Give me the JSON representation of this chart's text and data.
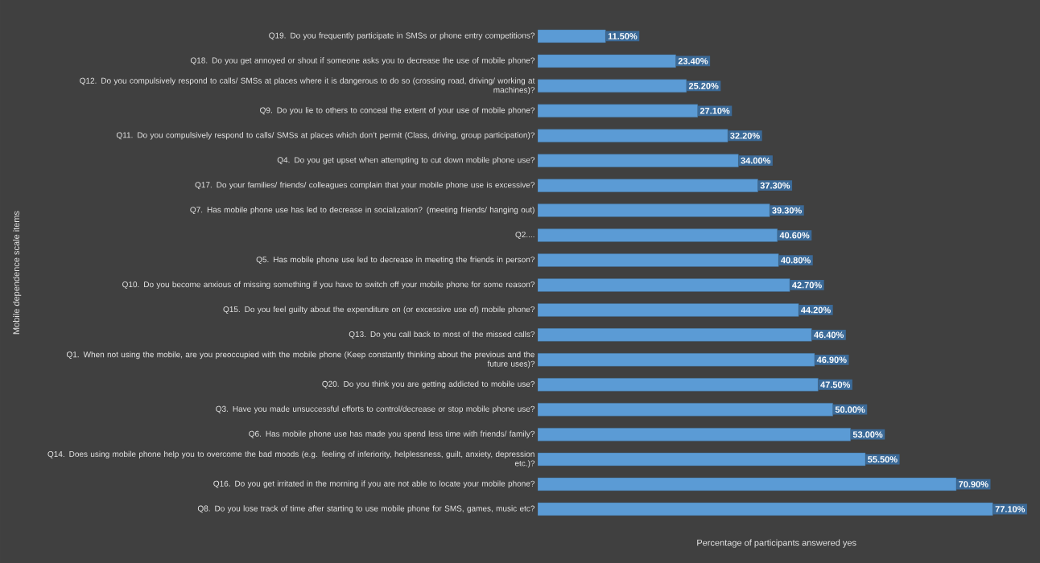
{
  "chart_data": {
    "type": "bar",
    "orientation": "horizontal",
    "xlabel": "Percentage of participants answered yes",
    "ylabel": "Mobile dependence scale items",
    "color": "#5b9bd5",
    "categories": [
      "Q19. Do you frequently participate in SMSs or phone entry competitions?",
      "Q18. Do you get annoyed or shout if someone asks you to decrease the use of mobile phone?",
      "Q12. Do you compulsively respond to calls/ SMSs at places where it is dangerous to do so (crossing road, driving/ working at machines)?",
      "Q9. Do you lie to others to conceal the extent of your use of mobile phone?",
      "Q11. Do you compulsively respond to calls/ SMSs at places which don’t permit (Class, driving, group participation)?",
      "Q4. Do you get upset when attempting to cut down mobile phone use?",
      "Q17. Do your families/ friends/ colleagues complain that your mobile phone use is excessive?",
      "Q7. Has mobile phone use has led to decrease in socialization? (meeting friends/ hanging out)",
      "Q2....",
      "Q5. Has mobile phone use led to decrease in meeting the friends in person?",
      "Q10. Do you become anxious of missing something if you have to switch off your mobile phone for some reason?",
      "Q15. Do you feel guilty about the expenditure on (or excessive use of) mobile phone?",
      "Q13. Do you call back to most of the missed calls?",
      "Q1. When not using the mobile, are you preoccupied with the mobile phone (Keep constantly thinking about the previous and the future uses)?",
      "Q20. Do you think you are getting addicted to mobile use?",
      "Q3. Have you made unsuccessful efforts to control/decrease or stop mobile phone use?",
      "Q6. Has mobile phone use has made you spend less time with friends/ family?",
      "Q14. Does using mobile phone help you to overcome the bad moods (e.g. feeling of inferiority, helplessness, guilt, anxiety, depression etc.)?",
      "Q16. Do you get irritated in the morning if you are not able to locate your mobile phone?",
      "Q8. Do you lose track of time after starting to use mobile phone for SMS, games, music etc?"
    ],
    "values": [
      11.5,
      23.4,
      25.2,
      27.1,
      32.2,
      34.0,
      37.3,
      39.3,
      40.6,
      40.8,
      42.7,
      44.2,
      46.4,
      46.9,
      47.5,
      50.0,
      53.0,
      55.5,
      70.9,
      77.1
    ],
    "value_labels": [
      "11.50%",
      "23.40%",
      "25.20%",
      "27.10%",
      "32.20%",
      "34.00%",
      "37.30%",
      "39.30%",
      "40.60%",
      "40.80%",
      "42.70%",
      "44.20%",
      "46.40%",
      "46.90%",
      "47.50%",
      "50.00%",
      "53.00%",
      "55.50%",
      "70.90%",
      "77.10%"
    ]
  }
}
